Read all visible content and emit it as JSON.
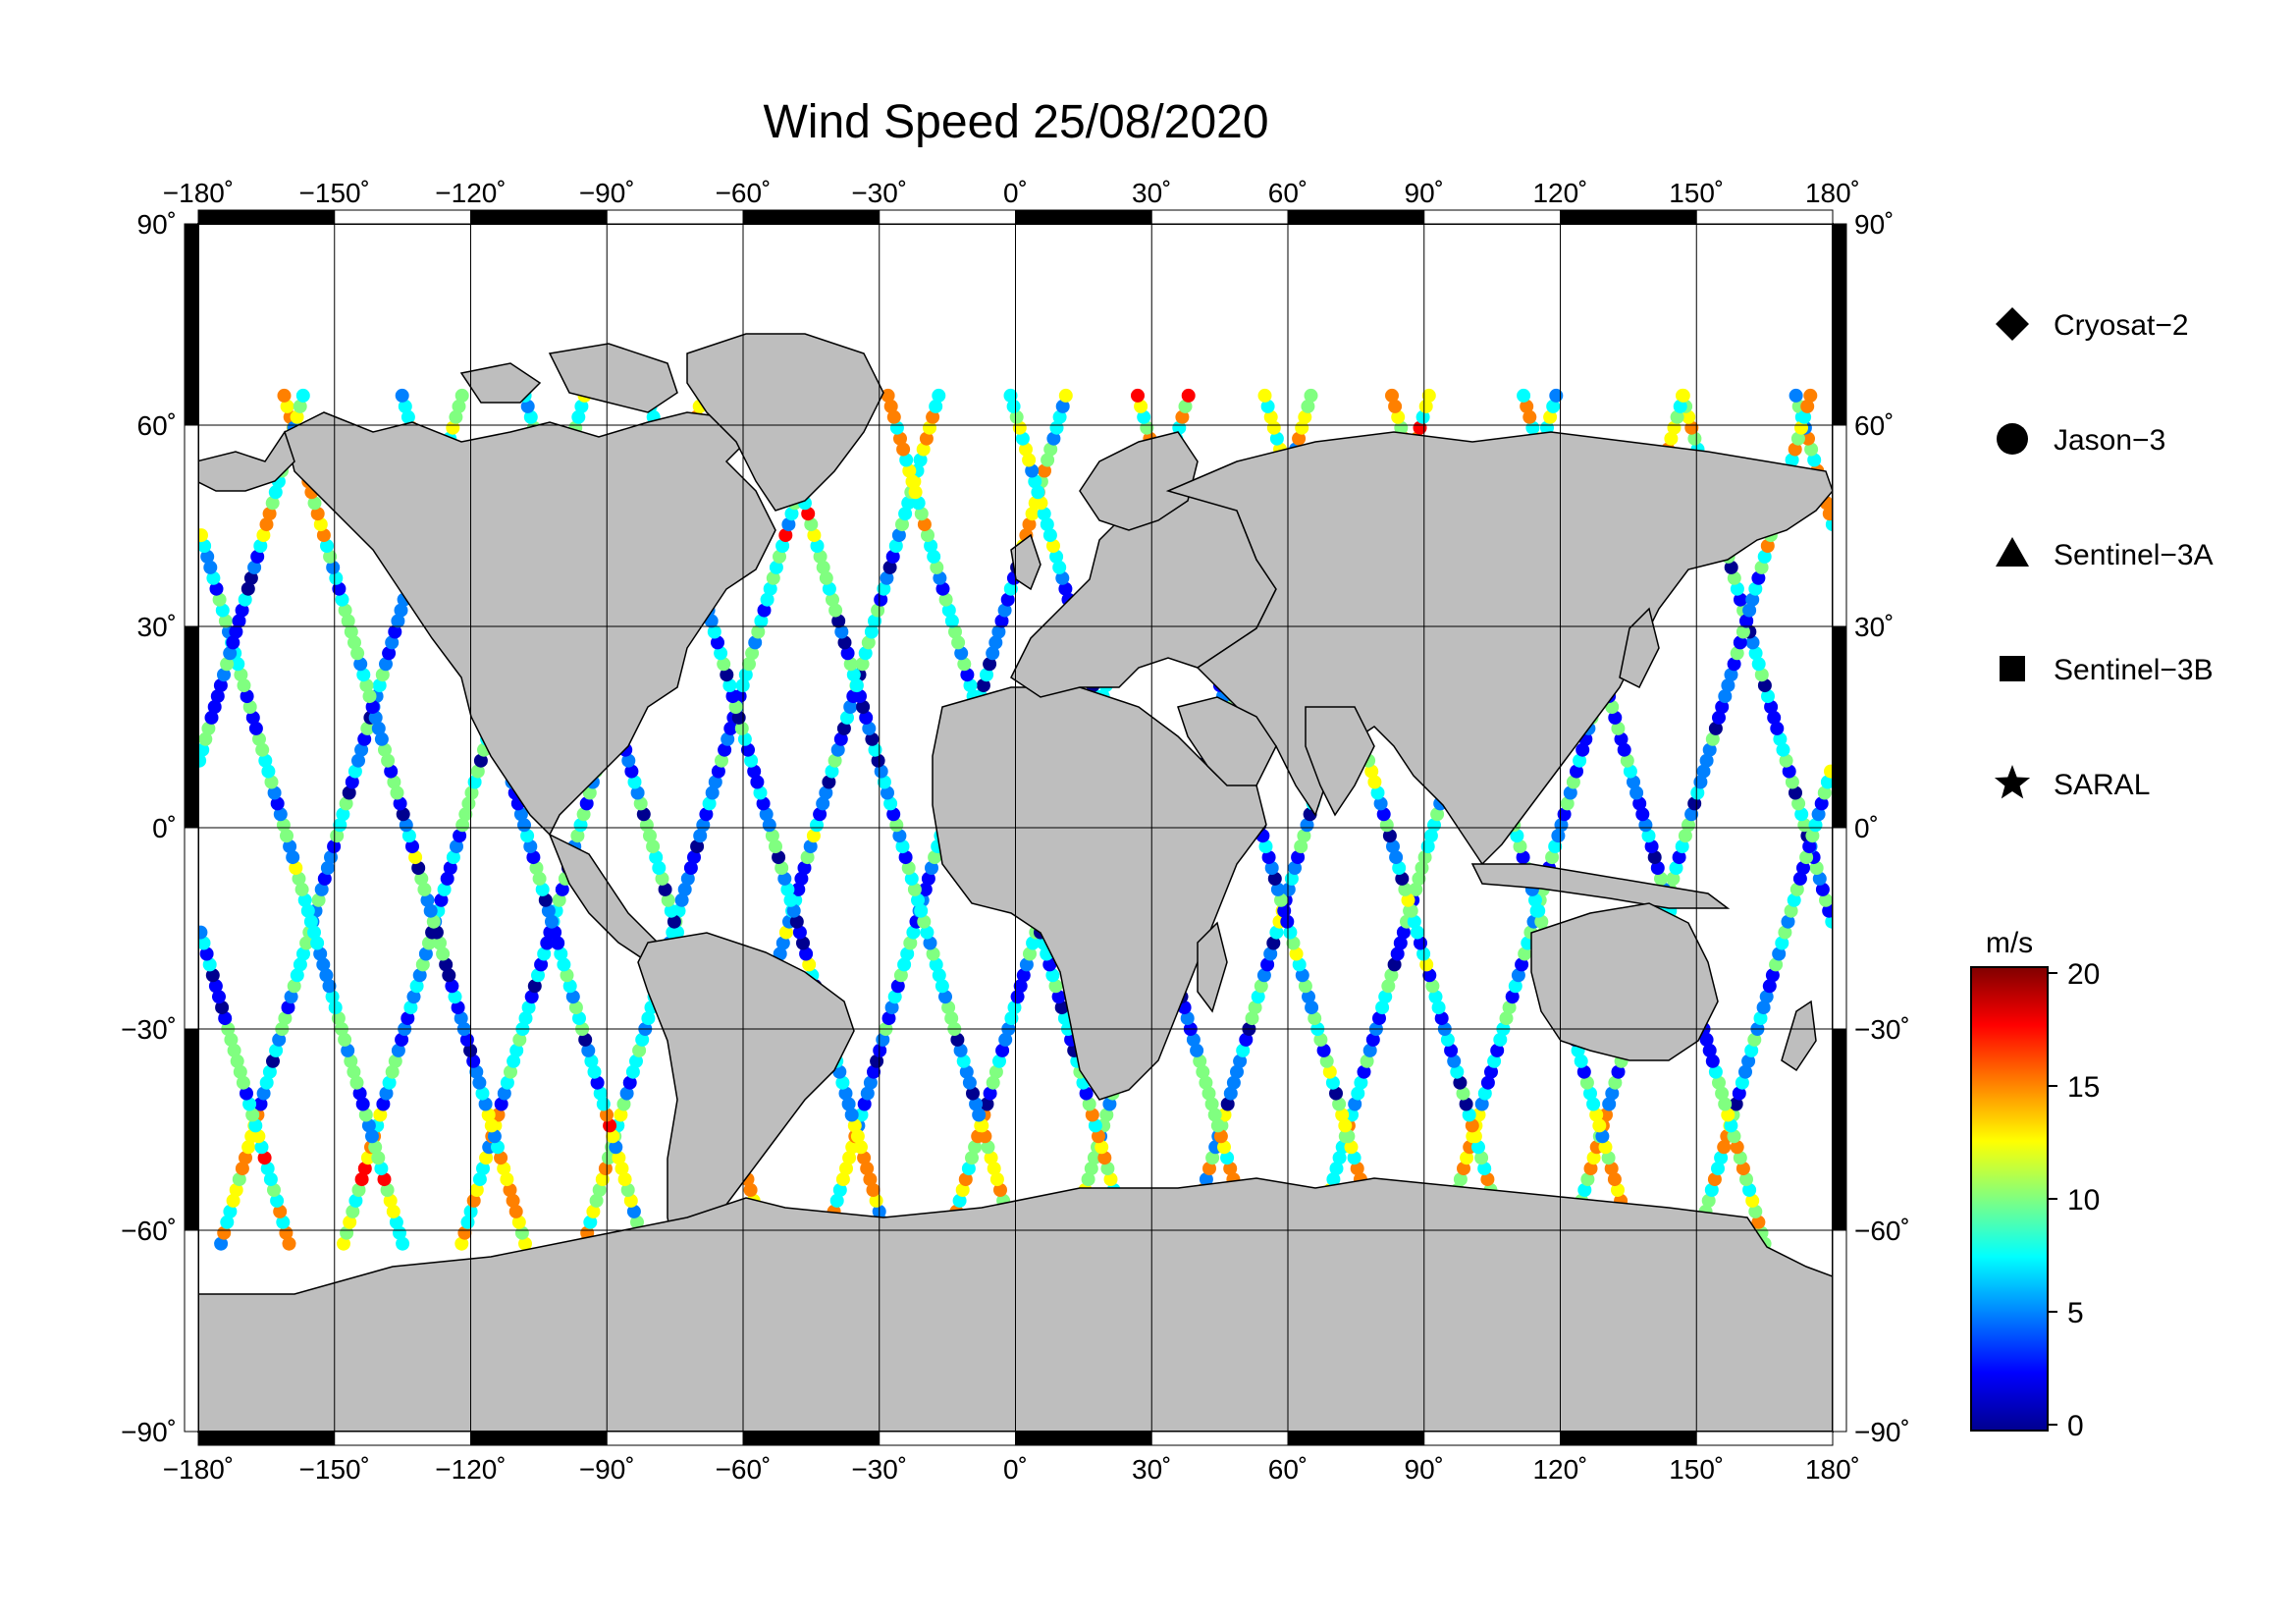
{
  "title": "Wind Speed 25/08/2020",
  "axes": {
    "lon_ticks": [
      {
        "value": -180,
        "label": "−180˚"
      },
      {
        "value": -150,
        "label": "−150˚"
      },
      {
        "value": -120,
        "label": "−120˚"
      },
      {
        "value": -90,
        "label": "−90˚"
      },
      {
        "value": -60,
        "label": "−60˚"
      },
      {
        "value": -30,
        "label": "−30˚"
      },
      {
        "value": 0,
        "label": "0˚"
      },
      {
        "value": 30,
        "label": "30˚"
      },
      {
        "value": 60,
        "label": "60˚"
      },
      {
        "value": 90,
        "label": "90˚"
      },
      {
        "value": 120,
        "label": "120˚"
      },
      {
        "value": 150,
        "label": "150˚"
      },
      {
        "value": 180,
        "label": "180˚"
      }
    ],
    "lat_ticks": [
      {
        "value": 90,
        "label": "90˚"
      },
      {
        "value": 60,
        "label": "60˚"
      },
      {
        "value": 30,
        "label": "30˚"
      },
      {
        "value": 0,
        "label": "0˚"
      },
      {
        "value": -30,
        "label": "−30˚"
      },
      {
        "value": -60,
        "label": "−60˚"
      },
      {
        "value": -90,
        "label": "−90˚"
      }
    ],
    "lon_range": [
      -180,
      180
    ],
    "lat_range": [
      -90,
      90
    ],
    "grid": true
  },
  "legend": {
    "placement": "right",
    "items": [
      {
        "label": "Cryosat−2",
        "symbol": "diamond"
      },
      {
        "label": "Jason−3",
        "symbol": "circle"
      },
      {
        "label": "Sentinel−3A",
        "symbol": "triangle"
      },
      {
        "label": "Sentinel−3B",
        "symbol": "square"
      },
      {
        "label": "SARAL",
        "symbol": "star"
      }
    ]
  },
  "colorbar": {
    "unit": "m/s",
    "min": 0,
    "max": 20,
    "ticks": [
      {
        "value": 20,
        "label": "20"
      },
      {
        "value": 15,
        "label": "15"
      },
      {
        "value": 10,
        "label": "10"
      },
      {
        "value": 5,
        "label": "5"
      },
      {
        "value": 0,
        "label": "0"
      }
    ],
    "colormap": [
      "#00008f",
      "#0000ff",
      "#0080ff",
      "#00ffff",
      "#80ff80",
      "#ffff00",
      "#ff8000",
      "#ff0000",
      "#800000"
    ]
  },
  "colors": {
    "land": "#bebebe",
    "ocean": "#ffffff",
    "frame": "#000000"
  }
}
